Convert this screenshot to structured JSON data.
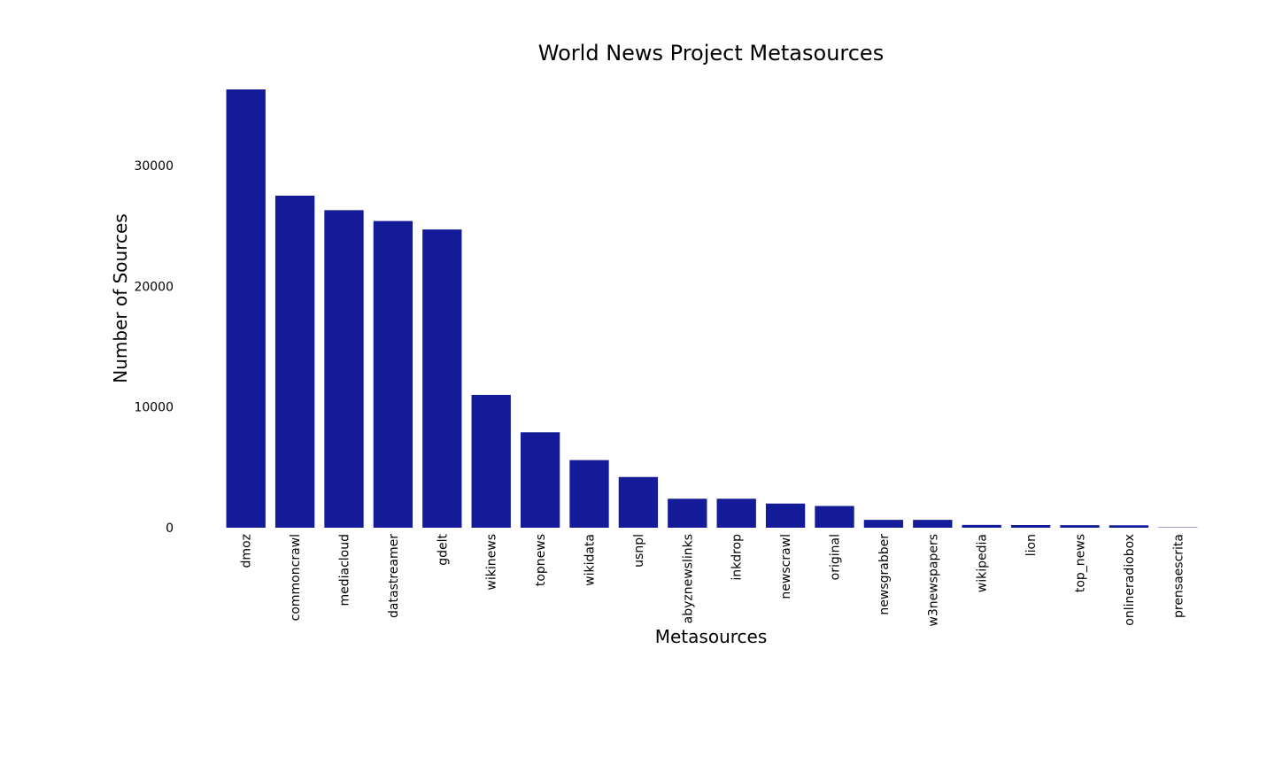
{
  "chart_data": {
    "type": "bar",
    "title": "World News Project Metasources",
    "xlabel": "Metasources",
    "ylabel": "Number of Sources",
    "categories": [
      "dmoz",
      "commoncrawl",
      "mediacloud",
      "datastreamer",
      "gdelt",
      "wikinews",
      "topnews",
      "wikidata",
      "usnpl",
      "abyznewslinks",
      "inkdrop",
      "newscrawl",
      "original",
      "newsgrabber",
      "w3newspapers",
      "wikipedia",
      "lion",
      "top_news",
      "onlineradiobox",
      "prensaescrita"
    ],
    "values": [
      36300,
      27500,
      26300,
      25400,
      24700,
      11000,
      7900,
      5600,
      4200,
      2400,
      2400,
      2000,
      1800,
      650,
      650,
      230,
      220,
      210,
      200,
      30
    ],
    "yticks": [
      "0",
      "10000",
      "20000",
      "30000"
    ],
    "ylim": [
      0,
      36300
    ],
    "grid": false,
    "legend": "none",
    "bar_color": "#141b98"
  }
}
